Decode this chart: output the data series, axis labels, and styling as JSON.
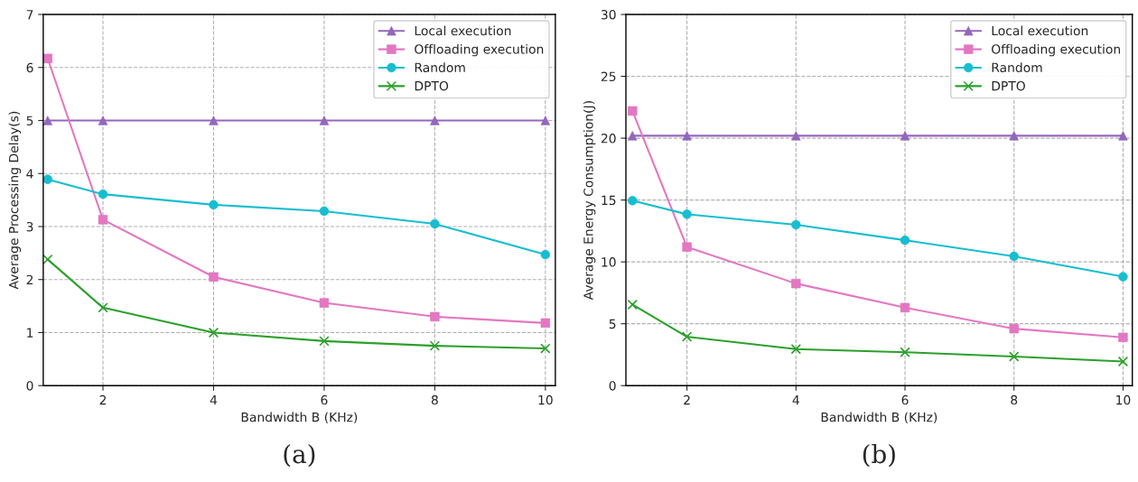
{
  "chart_data": [
    {
      "type": "line",
      "xlabel": "Bandwidth B (KHz)",
      "ylabel": "Average Processing Delay(s)",
      "x": [
        1,
        2,
        4,
        6,
        8,
        10
      ],
      "xlim": [
        0.92,
        10.18
      ],
      "xticks": [
        2,
        4,
        6,
        8,
        10
      ],
      "ylim": [
        0,
        7
      ],
      "yticks": [
        0,
        1,
        2,
        3,
        4,
        5,
        6,
        7
      ],
      "grid": true,
      "legend": "top right",
      "annotations": [
        "(a)"
      ],
      "series": [
        {
          "name": "Local execution",
          "color": "#9467bd",
          "marker": "triangle",
          "values": [
            5.0,
            5.0,
            5.0,
            5.0,
            5.0,
            5.0
          ]
        },
        {
          "name": "Offloading execution",
          "color": "#e377c2",
          "marker": "square",
          "values": [
            6.17,
            3.13,
            2.05,
            1.56,
            1.3,
            1.18
          ]
        },
        {
          "name": "Random",
          "color": "#17becf",
          "marker": "circle",
          "values": [
            3.89,
            3.61,
            3.41,
            3.29,
            3.05,
            2.47
          ]
        },
        {
          "name": "DPTO",
          "color": "#2ca02c",
          "marker": "cross",
          "values": [
            2.38,
            1.47,
            1.0,
            0.84,
            0.75,
            0.7
          ]
        }
      ]
    },
    {
      "type": "line",
      "xlabel": "Bandwidth B (KHz)",
      "ylabel": "Average Energy Consumption(J)",
      "x": [
        1,
        2,
        4,
        6,
        8,
        10
      ],
      "xlim": [
        0.88,
        10.17
      ],
      "xticks": [
        2,
        4,
        6,
        8,
        10
      ],
      "ylim": [
        0,
        30
      ],
      "yticks": [
        0,
        5,
        10,
        15,
        20,
        25,
        30
      ],
      "grid": true,
      "legend": "top right",
      "annotations": [
        "(b)"
      ],
      "series": [
        {
          "name": "Local execution",
          "color": "#9467bd",
          "marker": "triangle",
          "values": [
            20.2,
            20.2,
            20.2,
            20.2,
            20.2,
            20.2
          ]
        },
        {
          "name": "Offloading execution",
          "color": "#e377c2",
          "marker": "square",
          "values": [
            22.2,
            11.2,
            8.25,
            6.3,
            4.6,
            3.9
          ]
        },
        {
          "name": "Random",
          "color": "#17becf",
          "marker": "circle",
          "values": [
            14.95,
            13.85,
            13.0,
            11.75,
            10.45,
            8.8
          ]
        },
        {
          "name": "DPTO",
          "color": "#2ca02c",
          "marker": "cross",
          "values": [
            6.55,
            3.95,
            2.95,
            2.7,
            2.35,
            1.95
          ]
        }
      ]
    }
  ]
}
